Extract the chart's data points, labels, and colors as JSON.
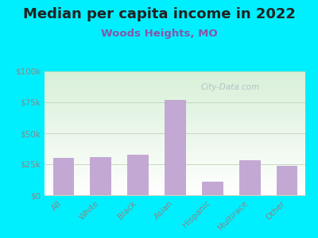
{
  "title": "Median per capita income in 2022",
  "subtitle": "Woods Heights, MO",
  "categories": [
    "All",
    "White",
    "Black",
    "Asian",
    "Hispanic",
    "Multirace",
    "Other"
  ],
  "values": [
    30000,
    30500,
    33000,
    77000,
    11000,
    28000,
    24000
  ],
  "bar_color": "#c4a8d4",
  "bar_edge_color": "#b898cc",
  "background_outer": "#00efff",
  "plot_bg_top_color": "#d8f0d8",
  "plot_bg_bottom_color": "#ffffff",
  "title_color": "#222222",
  "subtitle_color": "#8855aa",
  "tick_label_color": "#888888",
  "grid_color": "#c8d8c0",
  "ylim": [
    0,
    100000
  ],
  "yticks": [
    0,
    25000,
    50000,
    75000,
    100000
  ],
  "ytick_labels": [
    "$0",
    "$25k",
    "$50k",
    "$75k",
    "$100k"
  ],
  "watermark_text": "City-Data.com",
  "title_fontsize": 13,
  "subtitle_fontsize": 9.5,
  "tick_fontsize": 7.5
}
